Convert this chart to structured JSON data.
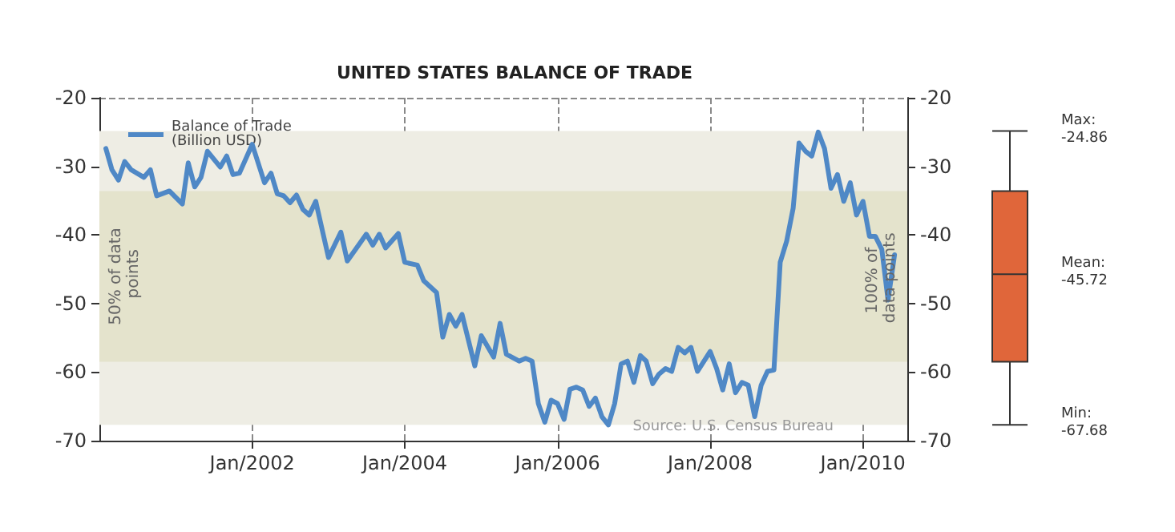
{
  "chart_data": [
    {
      "type": "line",
      "title": "UNITED STATES BALANCE OF TRADE",
      "x": [
        "2000-02",
        "2000-03",
        "2000-04",
        "2000-05",
        "2000-06",
        "2000-08",
        "2000-09",
        "2000-10",
        "2000-12",
        "2001-02",
        "2001-03",
        "2001-04",
        "2001-05",
        "2001-06",
        "2001-08",
        "2001-09",
        "2001-10",
        "2001-11",
        "2002-01",
        "2002-03",
        "2002-04",
        "2002-05",
        "2002-06",
        "2002-07",
        "2002-08",
        "2002-09",
        "2002-10",
        "2002-11",
        "2003-01",
        "2003-03",
        "2003-04",
        "2003-07",
        "2003-08",
        "2003-09",
        "2003-10",
        "2003-12",
        "2004-01",
        "2004-03",
        "2004-04",
        "2004-06",
        "2004-07",
        "2004-08",
        "2004-09",
        "2004-10",
        "2004-12",
        "2005-01",
        "2005-03",
        "2005-04",
        "2005-05",
        "2005-07",
        "2005-08",
        "2005-09",
        "2005-10",
        "2005-11",
        "2005-12",
        "2006-01",
        "2006-02",
        "2006-03",
        "2006-04",
        "2006-05",
        "2006-06",
        "2006-07",
        "2006-08",
        "2006-09",
        "2006-10",
        "2006-11",
        "2006-12",
        "2007-01",
        "2007-02",
        "2007-03",
        "2007-04",
        "2007-05",
        "2007-06",
        "2007-07",
        "2007-08",
        "2007-09",
        "2007-10",
        "2007-11",
        "2008-01",
        "2008-02",
        "2008-03",
        "2008-04",
        "2008-05",
        "2008-06",
        "2008-07",
        "2008-08",
        "2008-09",
        "2008-10",
        "2008-11",
        "2008-12",
        "2009-01",
        "2009-02",
        "2009-03",
        "2009-04",
        "2009-05",
        "2009-06",
        "2009-07",
        "2009-08",
        "2009-09",
        "2009-10",
        "2009-11",
        "2009-12",
        "2010-01",
        "2010-02",
        "2010-03",
        "2010-04",
        "2010-05",
        "2010-06"
      ],
      "series": [
        {
          "name": "Balance of Trade (Billion USD)",
          "color": "#4f88c6",
          "values": [
            -27.4,
            -30.5,
            -32.0,
            -29.3,
            -30.5,
            -31.6,
            -30.5,
            -34.3,
            -33.6,
            -35.5,
            -29.5,
            -33.0,
            -31.6,
            -27.8,
            -30.1,
            -28.5,
            -31.2,
            -31.0,
            -26.8,
            -32.4,
            -31.0,
            -34.0,
            -34.3,
            -35.3,
            -34.2,
            -36.3,
            -37.1,
            -35.1,
            -43.3,
            -39.6,
            -43.8,
            -39.9,
            -41.5,
            -39.9,
            -41.9,
            -39.8,
            -44.0,
            -44.4,
            -46.7,
            -48.4,
            -54.9,
            -51.6,
            -53.3,
            -51.6,
            -59.1,
            -54.7,
            -57.8,
            -52.9,
            -57.4,
            -58.4,
            -58.0,
            -58.4,
            -64.6,
            -67.3,
            -64.1,
            -64.6,
            -66.9,
            -62.5,
            -62.2,
            -62.6,
            -65.0,
            -63.8,
            -66.5,
            -67.7,
            -64.6,
            -58.8,
            -58.4,
            -61.5,
            -57.6,
            -58.4,
            -61.7,
            -60.3,
            -59.5,
            -59.9,
            -56.4,
            -57.2,
            -56.4,
            -59.9,
            -57.0,
            -59.5,
            -62.6,
            -58.8,
            -63.0,
            -61.5,
            -61.9,
            -66.5,
            -61.9,
            -59.9,
            -59.7,
            -44.0,
            -40.9,
            -36.1,
            -26.6,
            -27.8,
            -28.5,
            -25.0,
            -27.4,
            -33.2,
            -31.2,
            -35.1,
            -32.4,
            -37.1,
            -35.1,
            -40.2,
            -40.2,
            -42.1,
            -49.5,
            -42.9
          ]
        }
      ],
      "xlim": [
        "2000-01",
        "2010-08"
      ],
      "xticks": [
        {
          "value": "2002-01",
          "label": "Jan/2002"
        },
        {
          "value": "2004-01",
          "label": "Jan/2004"
        },
        {
          "value": "2006-01",
          "label": "Jan/2006"
        },
        {
          "value": "2008-01",
          "label": "Jan/2008"
        },
        {
          "value": "2010-01",
          "label": "Jan/2010"
        }
      ],
      "ylim": [
        -70,
        -20
      ],
      "yticks": [
        -70,
        -60,
        -50,
        -40,
        -30,
        -20
      ],
      "y2lim": [
        -70,
        -20
      ],
      "y2ticks": [
        -70,
        -60,
        -50,
        -40,
        -30,
        -20
      ],
      "bands": [
        {
          "axis": "y",
          "from": -67.68,
          "to": -24.86,
          "label": "100% of data points",
          "color": "#eeede4"
        },
        {
          "axis": "y",
          "from": -58.5,
          "to": -33.6,
          "label": "50% of data points",
          "color": "#e4e3cc"
        }
      ],
      "annotations": [
        "Source: U.S. Census Bureau"
      ],
      "grid": true,
      "legend": "top left",
      "marker": "none",
      "line_style": "solid"
    },
    {
      "type": "box",
      "categories": [
        null
      ],
      "color": "#e0663a",
      "boxes": [
        {
          "low": -67.68,
          "q1": -58.5,
          "median": -45.72,
          "q3": -33.6,
          "high": -24.86
        }
      ],
      "ylim": [
        -70,
        -20
      ],
      "tick_labels": false,
      "annotations": [
        "Max:\n-24.86",
        "Mean:\n-45.72",
        "Min:\n-67.68"
      ]
    }
  ]
}
